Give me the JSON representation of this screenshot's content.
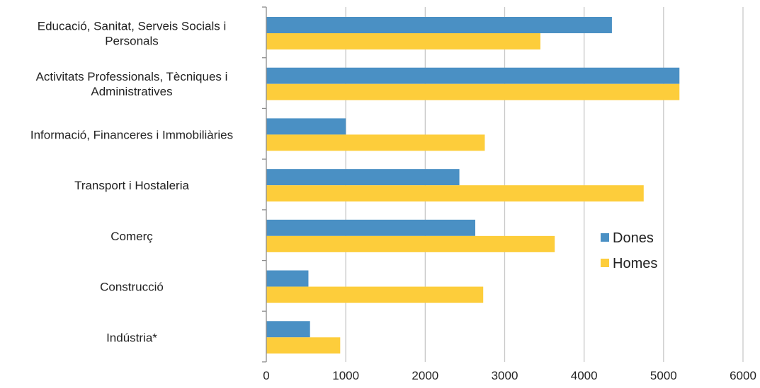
{
  "chart_data": {
    "type": "bar",
    "orientation": "horizontal",
    "categories": [
      [
        "Educació, Sanitat, Serveis Socials i",
        "Personals"
      ],
      [
        "Activitats Professionals, Tècniques i",
        "Administratives"
      ],
      [
        "Informació, Financeres i Immobiliàries"
      ],
      [
        "Transport i Hostaleria"
      ],
      [
        "Comerç"
      ],
      [
        "Construcció"
      ],
      [
        "Indústria*"
      ]
    ],
    "series": [
      {
        "name": "Dones",
        "color": "#4a90c4",
        "values": [
          4350,
          5200,
          1000,
          2430,
          2630,
          530,
          550
        ]
      },
      {
        "name": "Homes",
        "color": "#fdcd3b",
        "values": [
          3450,
          5200,
          2750,
          4750,
          3630,
          2730,
          930
        ]
      }
    ],
    "xlim": [
      0,
      6000
    ],
    "xticks": [
      "0",
      "1000",
      "2000",
      "3000",
      "4000",
      "5000",
      "6000"
    ],
    "grid": true,
    "legend_position": "right"
  }
}
